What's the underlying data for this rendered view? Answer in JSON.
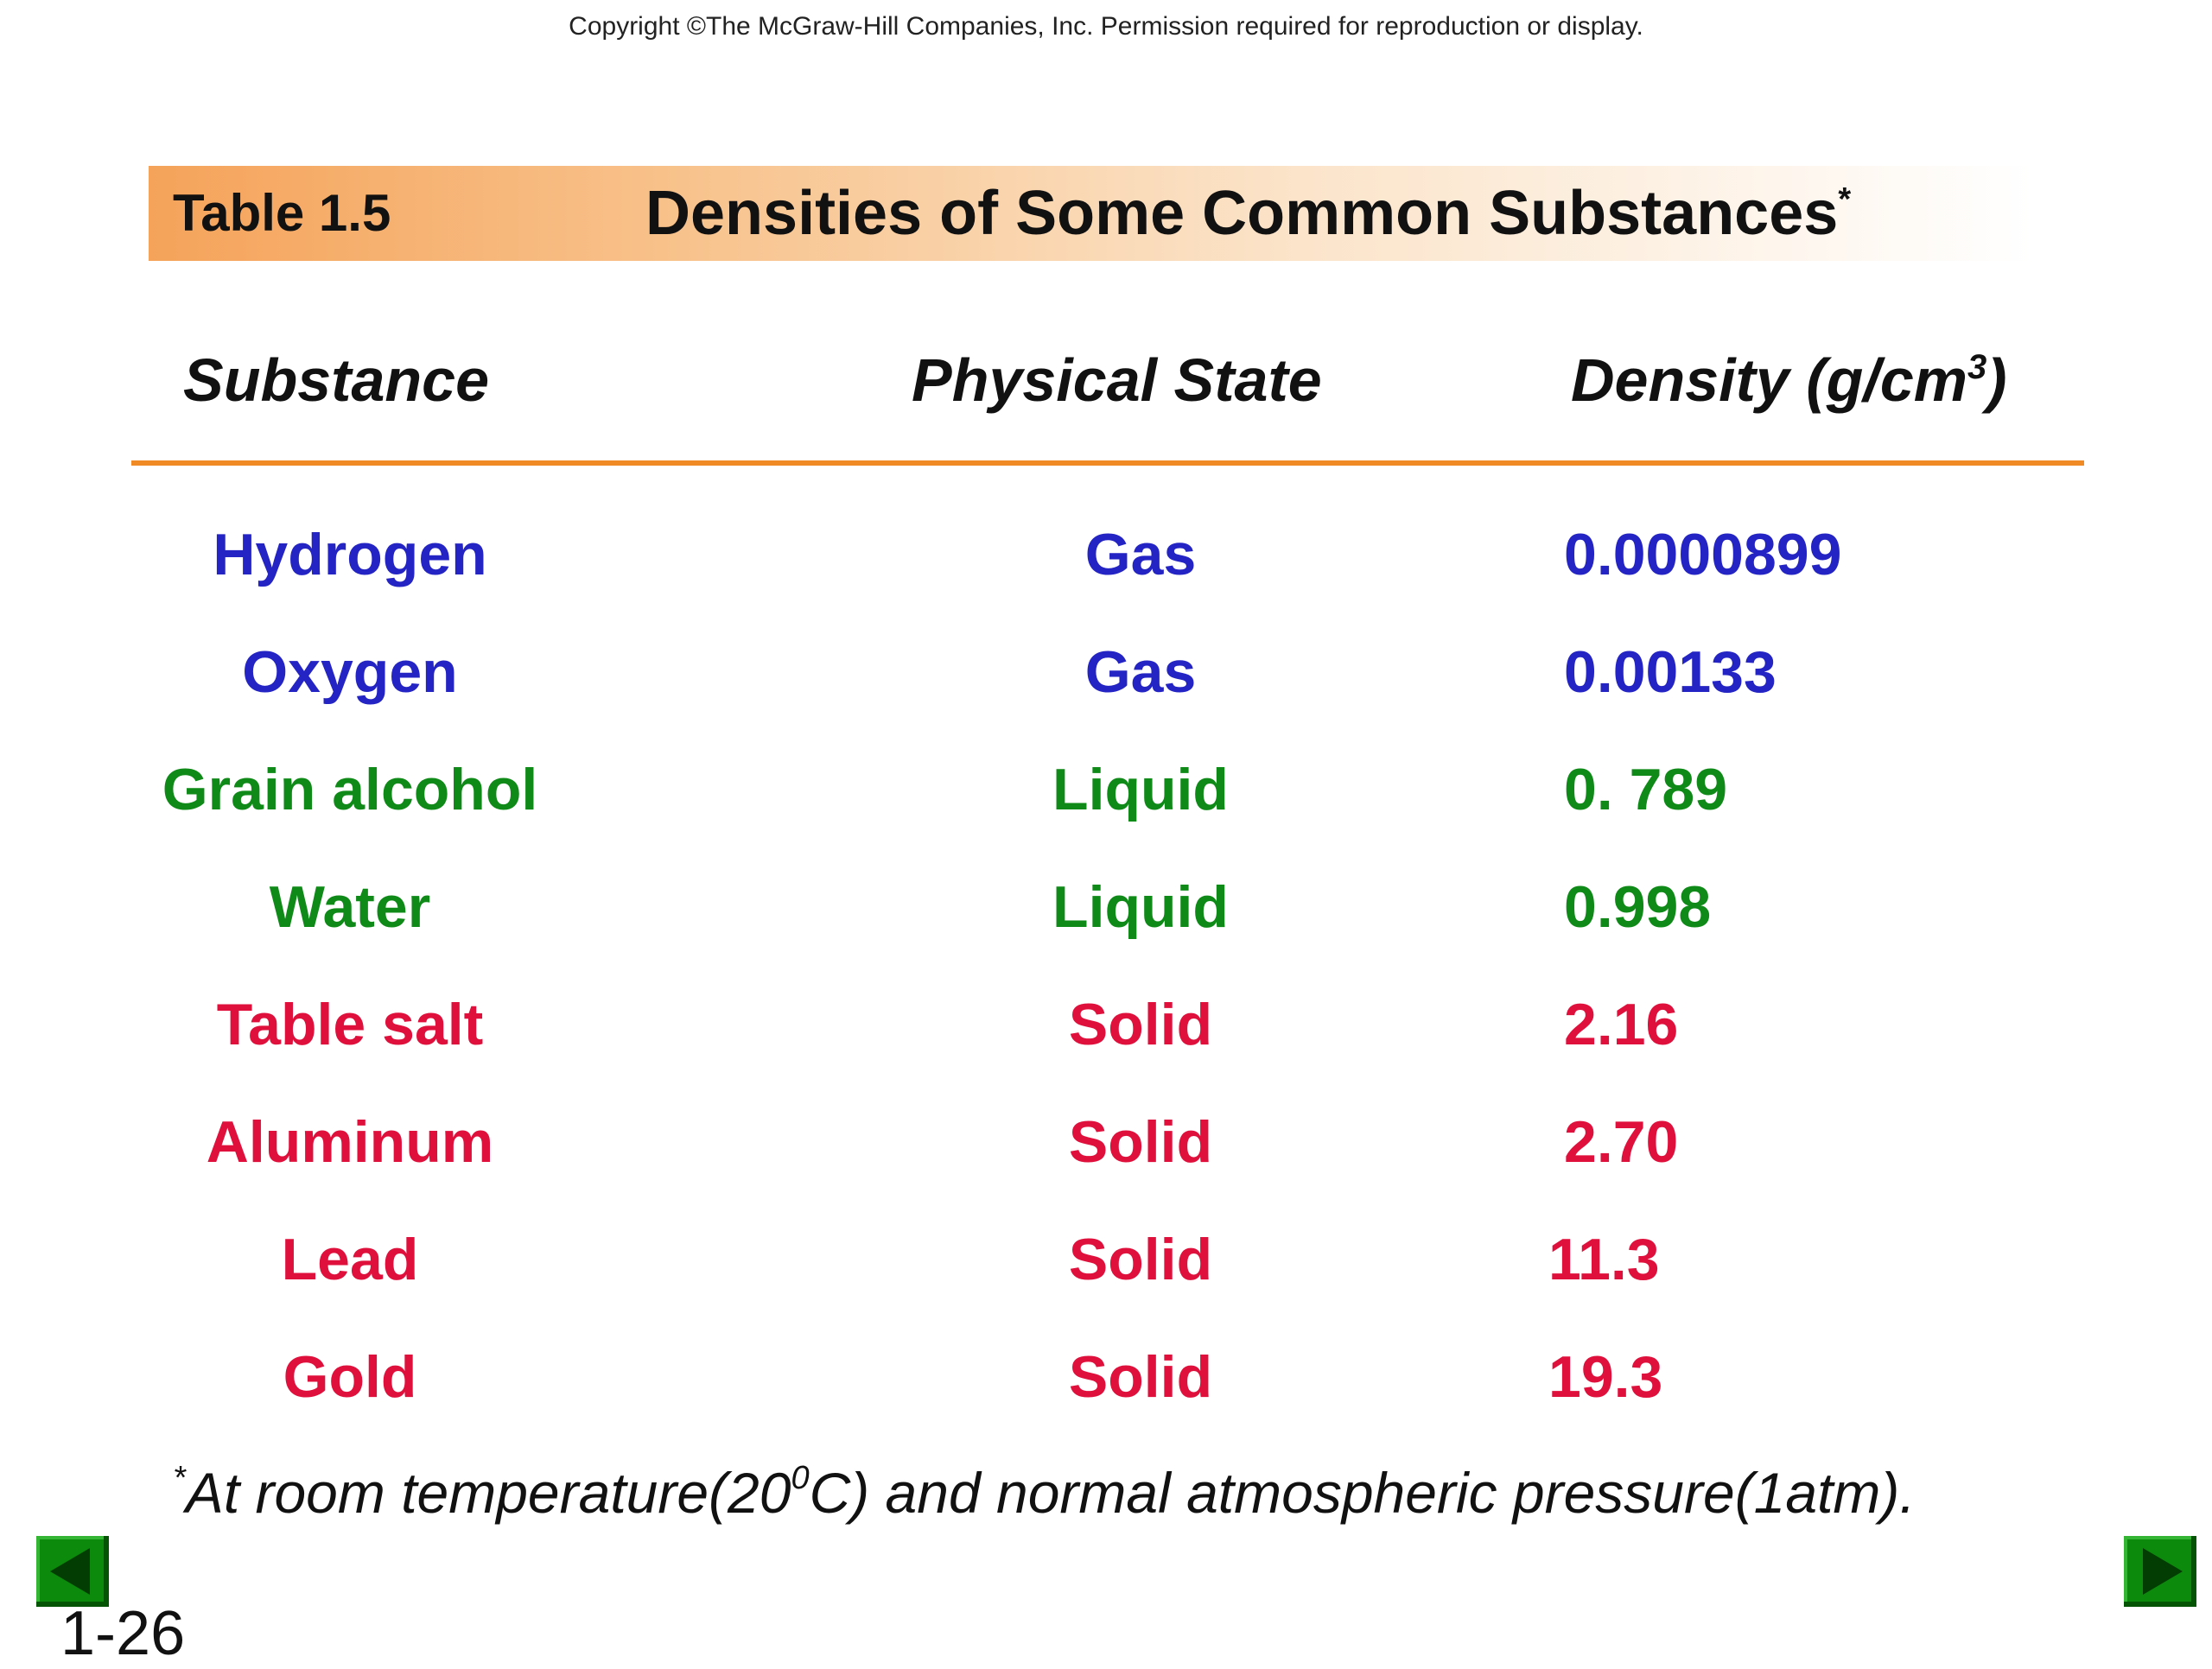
{
  "copyright": "Copyright ©The McGraw-Hill Companies, Inc.  Permission required for reproduction or display.",
  "table": {
    "number": "Table 1.5",
    "title": "Densities of Some Common Substances",
    "title_mark": "*",
    "headers": {
      "substance": "Substance",
      "state": "Physical State",
      "density": "Density (g/cm",
      "density_sup": "3",
      "density_close": ")"
    },
    "rows": [
      {
        "substance": "Hydrogen",
        "state": "Gas",
        "density": "0.0000899"
      },
      {
        "substance": "Oxygen",
        "state": "Gas",
        "density": "0.00133"
      },
      {
        "substance": "Grain alcohol",
        "state": "Liquid",
        "density": "0. 789"
      },
      {
        "substance": "Water",
        "state": "Liquid",
        "density": "0.998"
      },
      {
        "substance": "Table salt",
        "state": "Solid",
        "density": "2.16"
      },
      {
        "substance": "Aluminum",
        "state": "Solid",
        "density": "2.70"
      },
      {
        "substance": "Lead",
        "state": "Solid",
        "density": "11.3"
      },
      {
        "substance": "Gold",
        "state": "Solid",
        "density": "19.3"
      }
    ]
  },
  "state_colors": {
    "Gas": "#2424c4",
    "Liquid": "#0f8a18",
    "Solid": "#e0103c"
  },
  "footnote": {
    "mark": "*",
    "part1": "At room temperature(20",
    "sup": "0",
    "part2": "C) and normal atmospheric pressure(1atm)."
  },
  "navigation": {
    "prev_icon": "triangle-left-icon",
    "next_icon": "triangle-right-icon"
  },
  "slide_number": "1-26"
}
